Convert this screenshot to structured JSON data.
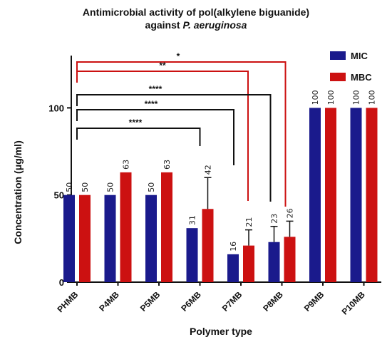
{
  "chart_data": {
    "type": "bar",
    "title_line1": "Antimicrobial activity of pol(alkylene biguanide)",
    "title_line2_prefix": "against ",
    "title_line2_italic": "P. aeruginosa",
    "xlabel": "Polymer type",
    "ylabel": "Concentration (μg/ml)",
    "ylim": [
      0,
      130
    ],
    "yticks": [
      0,
      50,
      100
    ],
    "categories": [
      "PHMB",
      "P4MB",
      "P5MB",
      "P6MB",
      "P7MB",
      "P8MB",
      "P9MB",
      "P10MB"
    ],
    "series": [
      {
        "name": "MIC",
        "color": "#1a1a8c",
        "values": [
          50,
          50,
          50,
          31,
          16,
          23,
          100,
          100
        ],
        "errors": [
          0,
          0,
          0,
          0,
          0,
          9,
          0,
          0
        ],
        "labels": [
          "50",
          "50",
          "50",
          "31",
          "16",
          "23",
          "100",
          "100"
        ]
      },
      {
        "name": "MBC",
        "color": "#cc1111",
        "values": [
          50,
          63,
          63,
          42,
          21,
          26,
          100,
          100
        ],
        "errors": [
          0,
          0,
          0,
          18,
          9,
          9,
          0,
          0
        ],
        "labels": [
          "50",
          "63",
          "63",
          "42",
          "21",
          "26",
          "100",
          "100"
        ]
      }
    ],
    "legend_position": "top-right",
    "significance": [
      {
        "from": "PHMB",
        "to": "P8MB",
        "label": "*",
        "color": "#cc1111"
      },
      {
        "from": "PHMB",
        "to": "P7MB",
        "label": "**",
        "color": "#cc1111"
      },
      {
        "from": "PHMB",
        "to": "P8MB",
        "label": "****",
        "color": "#111111"
      },
      {
        "from": "PHMB",
        "to": "P7MB",
        "label": "****",
        "color": "#111111"
      },
      {
        "from": "PHMB",
        "to": "P6MB",
        "label": "****",
        "color": "#111111"
      }
    ]
  }
}
